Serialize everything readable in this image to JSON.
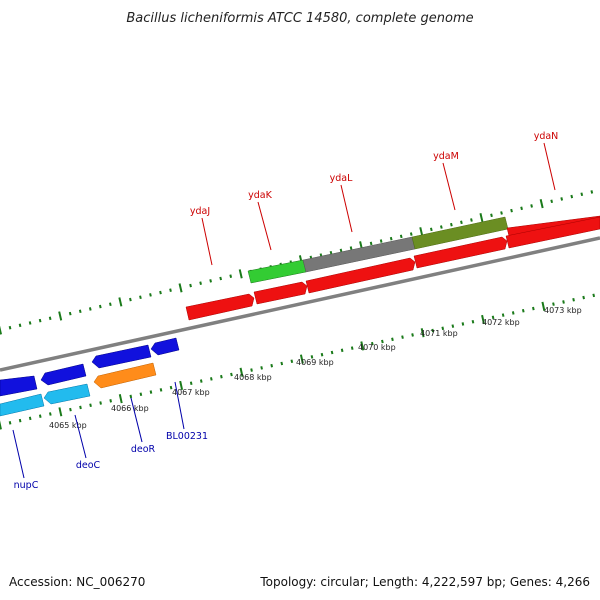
{
  "title": "Bacillus licheniformis ATCC 14580, complete genome",
  "footer": {
    "accession": "Accession: NC_006270",
    "summary": "Topology: circular; Length: 4,222,597 bp; Genes: 4,266"
  },
  "colors": {
    "backbone": "#808080",
    "ticks": "#1a7a1a",
    "forward_label": "#cc0000",
    "reverse_label": "#0000aa",
    "red": "#ee1111",
    "gray": "#777777",
    "green": "#33cc33",
    "olive": "#6b8e23",
    "blue": "#1111dd",
    "cyan": "#22bbee",
    "orange": "#ff8c1a"
  },
  "scale_labels": [
    "4065 kbp",
    "4066 kbp",
    "4067 kbp",
    "4068 kbp",
    "4069 kbp",
    "4070 kbp",
    "4071 kbp",
    "4072 kbp",
    "4073 kbp"
  ],
  "forward_gene_labels": [
    "ydaJ",
    "ydaK",
    "ydaL",
    "ydaM",
    "ydaN"
  ],
  "reverse_gene_labels": [
    "nupC",
    "deoC",
    "deoR",
    "BL00231"
  ]
}
